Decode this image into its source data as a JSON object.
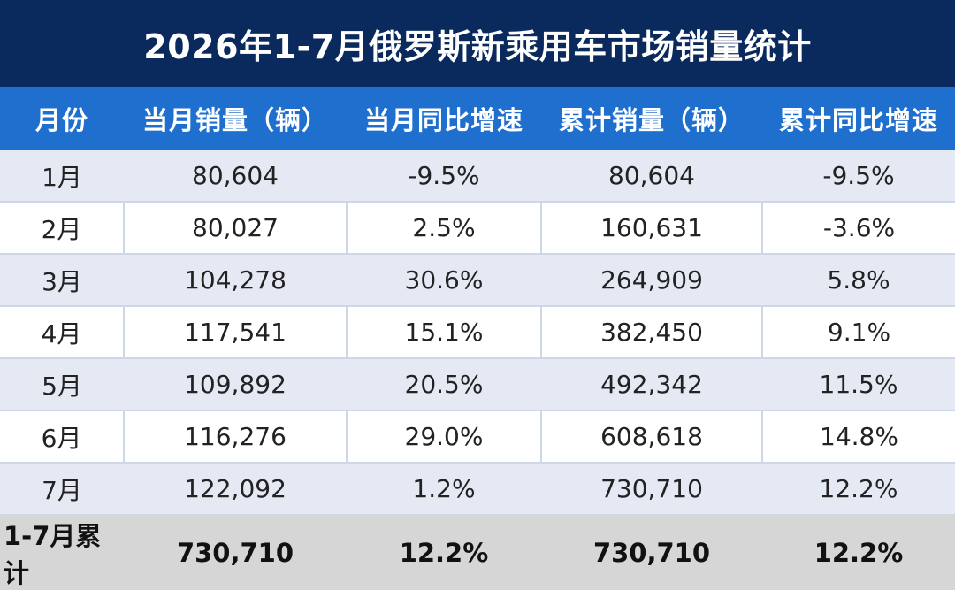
{
  "title": "2026年1-7月俄罗斯新乘用车市场销量统计",
  "headers": [
    "月份",
    "当月销量（辆）",
    "当月同比增速",
    "累计销量（辆）",
    "累计同比增速"
  ],
  "rows": [
    [
      "1月",
      "80,604",
      "-9.5%",
      "80,604",
      "-9.5%"
    ],
    [
      "2月",
      "80,027",
      "2.5%",
      "160,631",
      "-3.6%"
    ],
    [
      "3月",
      "104,278",
      "30.6%",
      "264,909",
      "5.8%"
    ],
    [
      "4月",
      "117,541",
      "15.1%",
      "382,450",
      "9.1%"
    ],
    [
      "5月",
      "109,892",
      "20.5%",
      "492,342",
      "11.5%"
    ],
    [
      "6月",
      "116,276",
      "29.0%",
      "608,618",
      "14.8%"
    ],
    [
      "7月",
      "122,092",
      "1.2%",
      "730,710",
      "12.2%"
    ]
  ],
  "total": [
    "1-7月累计",
    "730,710",
    "12.2%",
    "730,710",
    "12.2%"
  ],
  "colors": {
    "title_bg": "#0a2a5e",
    "header_bg": "#1f6fcf",
    "row_shade": "#e4e9f4",
    "total_bg": "#d6d6d6"
  }
}
